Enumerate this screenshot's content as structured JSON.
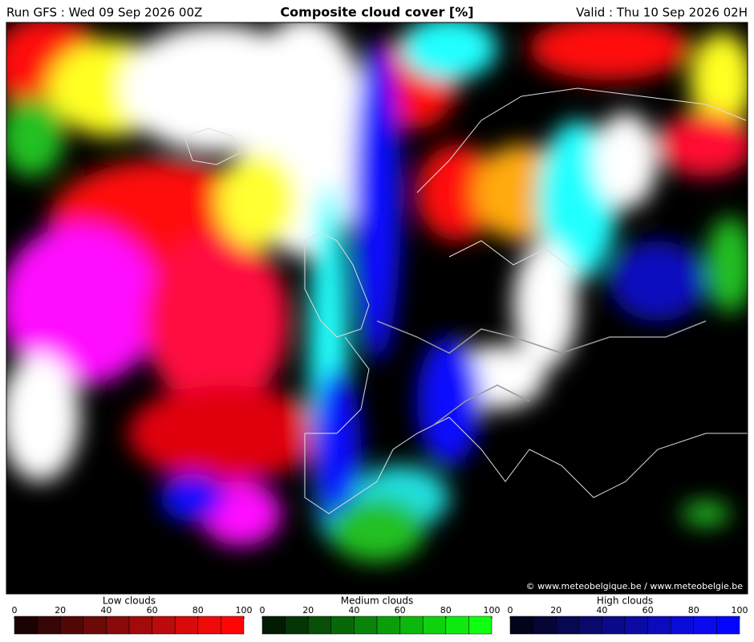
{
  "header": {
    "run": "Run GFS : Wed 09 Sep 2026 00Z",
    "title": "Composite cloud cover [%]",
    "valid": "Valid : Thu 10 Sep 2026 02H"
  },
  "credit": "© www.meteobelgique.be / www.meteobelgie.be",
  "legends": [
    {
      "title": "Low clouds",
      "ticks": [
        0,
        20,
        40,
        60,
        80,
        100
      ],
      "colors": [
        "#1c0303",
        "#360505",
        "#520707",
        "#6c0909",
        "#880a0a",
        "#a30b0b",
        "#bd0b0b",
        "#d70b0b",
        "#ef0a0a",
        "#ff0505"
      ]
    },
    {
      "title": "Medium clouds",
      "ticks": [
        0,
        20,
        40,
        60,
        80,
        100
      ],
      "colors": [
        "#031a03",
        "#053405",
        "#074e07",
        "#086808",
        "#0a830a",
        "#0b9e0b",
        "#0cb80c",
        "#0dd20d",
        "#0eea0e",
        "#10ff10"
      ]
    },
    {
      "title": "High clouds",
      "ticks": [
        0,
        20,
        40,
        60,
        80,
        100
      ],
      "colors": [
        "#03031c",
        "#050536",
        "#070752",
        "#09096c",
        "#0a0a88",
        "#0b0ba3",
        "#0b0bbd",
        "#0b0bd7",
        "#0a0aef",
        "#0505ff"
      ]
    }
  ]
}
